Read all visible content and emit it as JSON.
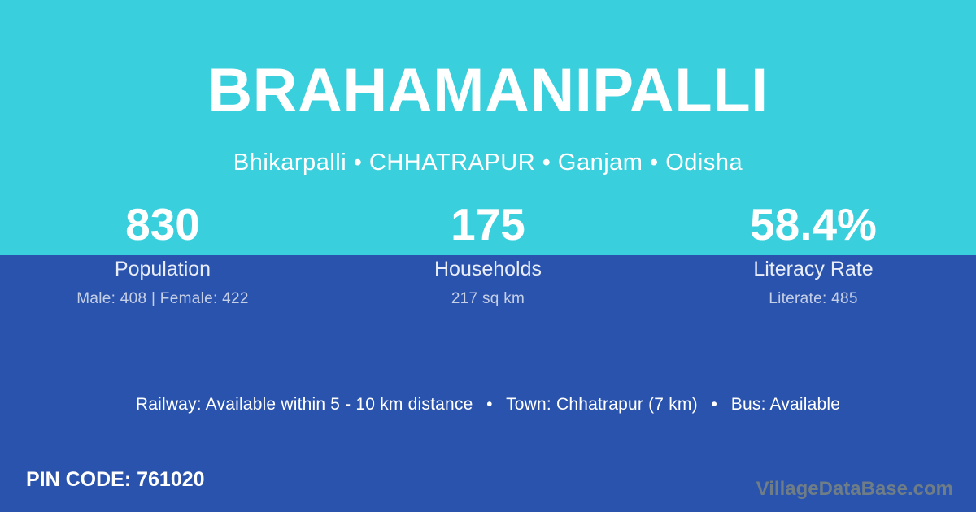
{
  "header": {
    "title": "BRAHAMANIPALLI",
    "subtitle": "Bhikarpalli • CHHATRAPUR • Ganjam • Odisha"
  },
  "stats": [
    {
      "value": "830",
      "label": "Population",
      "detail": "Male: 408 | Female: 422"
    },
    {
      "value": "175",
      "label": "Households",
      "detail": "217 sq km"
    },
    {
      "value": "58.4%",
      "label": "Literacy Rate",
      "detail": "Literate: 485"
    }
  ],
  "transport_line": "Railway: Available within 5 - 10 km distance  •  Town: Chhatrapur (7 km)  •  Bus: Available",
  "footer": {
    "pin_code": "PIN CODE: 761020",
    "watermark": "VillageDataBase.com"
  },
  "colors": {
    "cyan": "#39cfdc",
    "blue": "#2a53ad",
    "white": "#ffffff",
    "label_text": "#e8edf8",
    "detail_text": "#c5cfe6",
    "watermark": "#6f7d86"
  }
}
